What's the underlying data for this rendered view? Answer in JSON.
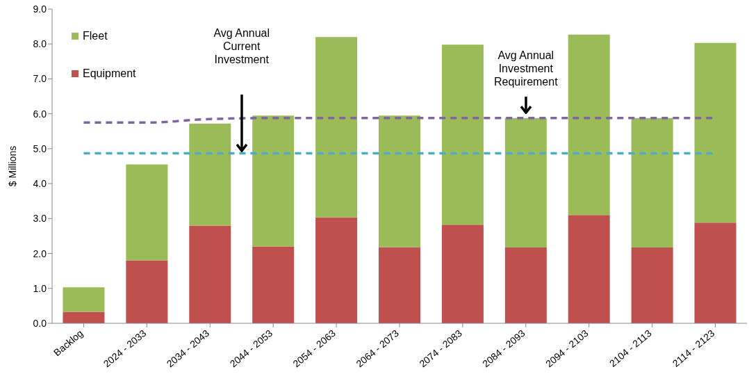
{
  "chart_data": {
    "type": "bar",
    "stacked": true,
    "ylabel": "$ Millions",
    "categories": [
      "Backlog",
      "2024 - 2033",
      "2034 - 2043",
      "2044 - 2053",
      "2054 - 2063",
      "2064 - 2073",
      "2074 - 2083",
      "2084 - 2093",
      "2094 - 2103",
      "2104 - 2113",
      "2114 - 2123"
    ],
    "series": [
      {
        "name": "Equipment",
        "color": "#c0504d",
        "values": [
          0.33,
          1.8,
          2.8,
          2.2,
          3.03,
          2.18,
          2.82,
          2.17,
          3.1,
          2.17,
          2.88
        ]
      },
      {
        "name": "Fleet",
        "color": "#9bbb59",
        "values": [
          0.7,
          2.75,
          2.92,
          3.75,
          5.17,
          3.77,
          5.16,
          3.71,
          5.17,
          3.71,
          5.15
        ]
      },
      {
        "type": "line",
        "color": "#8064a2",
        "line_style": "dashed",
        "marker": "none",
        "values": [
          5.75,
          5.75,
          5.85,
          5.88,
          5.88,
          5.88,
          5.88,
          5.88,
          5.88,
          5.88,
          5.88
        ]
      },
      {
        "type": "line",
        "color": "#4bacc6",
        "line_style": "dashed",
        "marker": "none",
        "values": [
          4.87,
          4.87,
          4.87,
          4.87,
          4.87,
          4.87,
          4.87,
          4.87,
          4.87,
          4.87,
          4.87
        ]
      }
    ],
    "ylim": [
      0,
      9
    ],
    "yticks": [
      {
        "value": 0,
        "label": "0.0"
      },
      {
        "value": 1,
        "label": "1.0"
      },
      {
        "value": 2,
        "label": "2.0"
      },
      {
        "value": 3,
        "label": "3.0"
      },
      {
        "value": 4,
        "label": "4.0"
      },
      {
        "value": 5,
        "label": "5.0"
      },
      {
        "value": 6,
        "label": "6.0"
      },
      {
        "value": 7,
        "label": "7.0"
      },
      {
        "value": 8,
        "label": "8.0"
      },
      {
        "value": 9,
        "label": "9.0"
      }
    ],
    "grid": false,
    "legend": "top left",
    "annotations": [
      "Avg Annual Current Investment",
      "Avg Annual Investment Requirement"
    ]
  }
}
